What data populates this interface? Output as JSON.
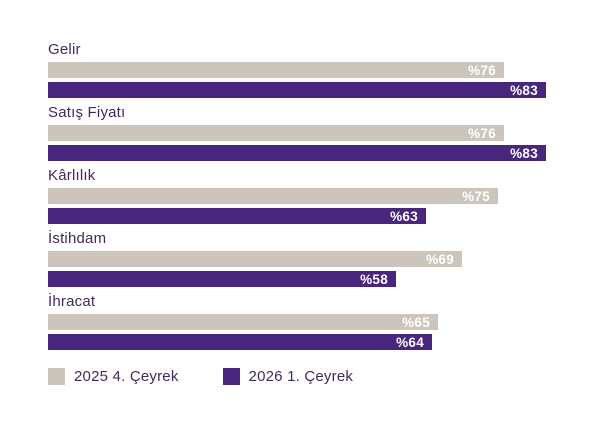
{
  "chart_data": {
    "type": "bar",
    "orientation": "horizontal",
    "title": "",
    "categories": [
      "Gelir",
      "Satış Fiyatı",
      "Kârlılık",
      "İstihdam",
      "İhracat"
    ],
    "series": [
      {
        "name": "2025 4. Çeyrek",
        "color": "#CBC5BC",
        "values": [
          76,
          76,
          75,
          69,
          65
        ]
      },
      {
        "name": "2026 1. Çeyrek",
        "color": "#48267D",
        "values": [
          83,
          83,
          63,
          58,
          64
        ]
      }
    ],
    "value_prefix": "%",
    "value_labels": [
      [
        "%76",
        "%76",
        "%75",
        "%69",
        "%65"
      ],
      [
        "%83",
        "%83",
        "%63",
        "%58",
        "%64"
      ]
    ],
    "legend_position": "bottom",
    "gridlines": false,
    "colors": {
      "category_label_text": "#41295E",
      "value_label_text": "#FFFFFF",
      "background": "#FFFFFF"
    }
  },
  "legend": {
    "items": [
      {
        "label": "2025 4. Çeyrek",
        "color": "#CBC5BC"
      },
      {
        "label": "2026 1. Çeyrek",
        "color": "#48267D"
      }
    ]
  }
}
